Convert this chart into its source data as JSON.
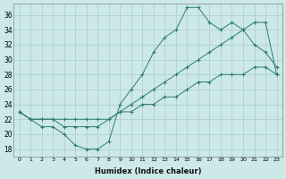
{
  "xlabel": "Humidex (Indice chaleur)",
  "ylabel": "",
  "bg_color": "#cce8e8",
  "grid_color": "#aacccc",
  "line_color": "#2e7d6e",
  "xlim": [
    -0.5,
    23.5
  ],
  "ylim": [
    17,
    37.5
  ],
  "yticks": [
    18,
    20,
    22,
    24,
    26,
    28,
    30,
    32,
    34,
    36
  ],
  "xticks": [
    0,
    1,
    2,
    3,
    4,
    5,
    6,
    7,
    8,
    9,
    10,
    11,
    12,
    13,
    14,
    15,
    16,
    17,
    18,
    19,
    20,
    21,
    22,
    23
  ],
  "series1_x": [
    0,
    1,
    2,
    3,
    4,
    5,
    6,
    7,
    8,
    9,
    10,
    11,
    12,
    13,
    14,
    15,
    16,
    17,
    18,
    19,
    20,
    21,
    22,
    23
  ],
  "series1_y": [
    23,
    22,
    21,
    21,
    20,
    18.5,
    18,
    18,
    19,
    24,
    26,
    28,
    31,
    33,
    34,
    37,
    37,
    35,
    34,
    35,
    34,
    32,
    31,
    29
  ],
  "series2_x": [
    0,
    1,
    2,
    3,
    4,
    5,
    6,
    7,
    8,
    9,
    10,
    11,
    12,
    13,
    14,
    15,
    16,
    17,
    18,
    19,
    20,
    21,
    22,
    23
  ],
  "series2_y": [
    23,
    22,
    22,
    22,
    21,
    21,
    21,
    21,
    22,
    23,
    24,
    25,
    26,
    27,
    28,
    29,
    30,
    31,
    32,
    33,
    34,
    35,
    35,
    28
  ],
  "series3_x": [
    0,
    1,
    2,
    3,
    4,
    5,
    6,
    7,
    8,
    9,
    10,
    11,
    12,
    13,
    14,
    15,
    16,
    17,
    18,
    19,
    20,
    21,
    22,
    23
  ],
  "series3_y": [
    23,
    22,
    22,
    22,
    22,
    22,
    22,
    22,
    22,
    23,
    23,
    24,
    24,
    25,
    25,
    26,
    27,
    27,
    28,
    28,
    28,
    29,
    29,
    28
  ]
}
